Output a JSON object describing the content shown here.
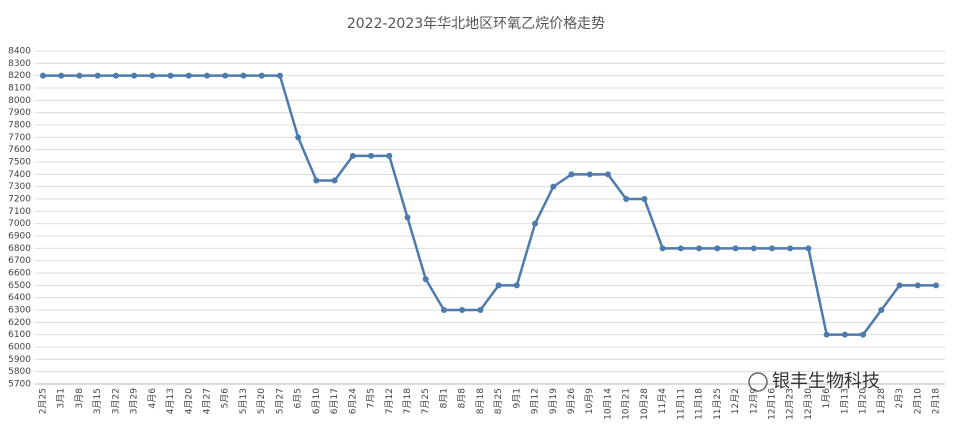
{
  "chart_data": {
    "type": "line",
    "title": "2022-2023年华北地区环氧乙烷价格走势",
    "categories": [
      "2月25",
      "3月1",
      "3月8",
      "3月15",
      "3月22",
      "3月29",
      "4月6",
      "4月13",
      "4月20",
      "4月27",
      "5月6",
      "5月13",
      "5月20",
      "5月27",
      "6月5",
      "6月10",
      "6月17",
      "6月24",
      "7月5",
      "7月12",
      "7月18",
      "7月25",
      "8月1",
      "8月8",
      "8月18",
      "8月25",
      "9月1",
      "9月12",
      "9月19",
      "9月26",
      "10月9",
      "10月14",
      "10月21",
      "10月28",
      "11月4",
      "11月11",
      "11月18",
      "11月25",
      "12月2",
      "12月9",
      "12月16",
      "12月23",
      "12月30",
      "1月6",
      "1月13",
      "1月20",
      "1月28",
      "2月3",
      "2月10",
      "2月18"
    ],
    "values": [
      8200,
      8200,
      8200,
      8200,
      8200,
      8200,
      8200,
      8200,
      8200,
      8200,
      8200,
      8200,
      8200,
      8200,
      7700,
      7350,
      7350,
      7550,
      7550,
      7550,
      7050,
      6550,
      6300,
      6300,
      6300,
      6500,
      6500,
      7000,
      7300,
      7400,
      7400,
      7400,
      7200,
      7200,
      6800,
      6800,
      6800,
      6800,
      6800,
      6800,
      6800,
      6800,
      6800,
      6100,
      6100,
      6100,
      6300,
      6500,
      6500,
      6500
    ],
    "color": "#4e7bab",
    "ylim": [
      5700,
      8400
    ],
    "yticks": [
      5700,
      5800,
      5900,
      6000,
      6100,
      6200,
      6300,
      6400,
      6500,
      6600,
      6700,
      6800,
      6900,
      7000,
      7100,
      7200,
      7300,
      7400,
      7500,
      7600,
      7700,
      7800,
      7900,
      8000,
      8100,
      8200,
      8300,
      8400
    ],
    "grid": true
  },
  "brand": "银丰生物科技"
}
